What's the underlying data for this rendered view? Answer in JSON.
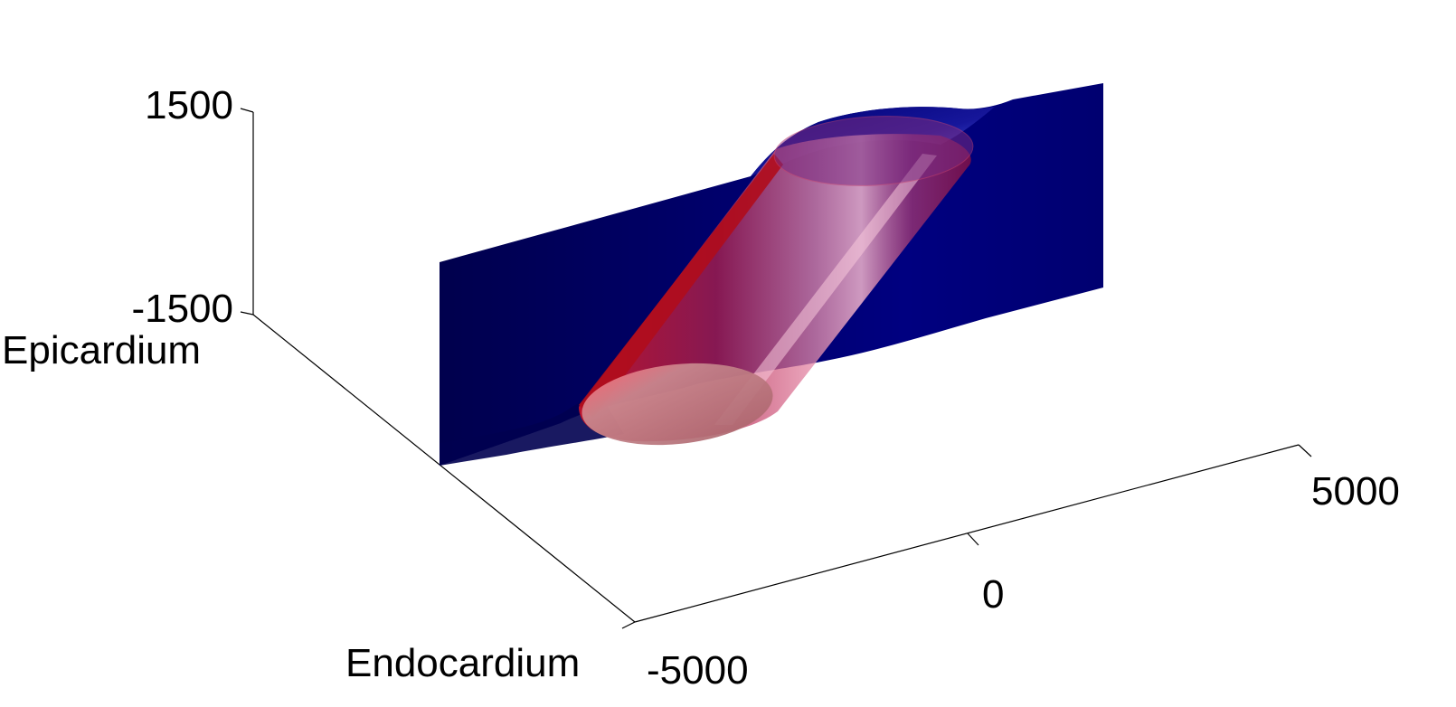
{
  "chart_data": {
    "type": "surface3d",
    "title": "",
    "axes": {
      "z": {
        "ticks": [
          {
            "value": 1500,
            "label": "1500"
          },
          {
            "value": -1500,
            "label": "-1500"
          }
        ],
        "range": [
          -1500,
          1500
        ]
      },
      "x": {
        "ticks": [
          {
            "value": -5000,
            "label": "-5000"
          },
          {
            "value": 0,
            "label": "0"
          },
          {
            "value": 5000,
            "label": "5000"
          }
        ],
        "range": [
          -5000,
          5000
        ]
      },
      "depth": {
        "start_label": "Epicardium",
        "end_label": "Endocardium"
      }
    },
    "series": [
      {
        "kind": "surface",
        "color": "#000080"
      },
      {
        "kind": "cylinder",
        "color": "#cc1a2a"
      }
    ],
    "grid": false,
    "legend": "none"
  },
  "colors": {
    "surface_dark": "#00004d",
    "surface_mid": "#000080",
    "surface_light": "#3a4cd8",
    "cylinder": "#c4142a",
    "cylinder_light": "#f4a0b6",
    "cap": "#b66c72",
    "axis": "#000000"
  }
}
